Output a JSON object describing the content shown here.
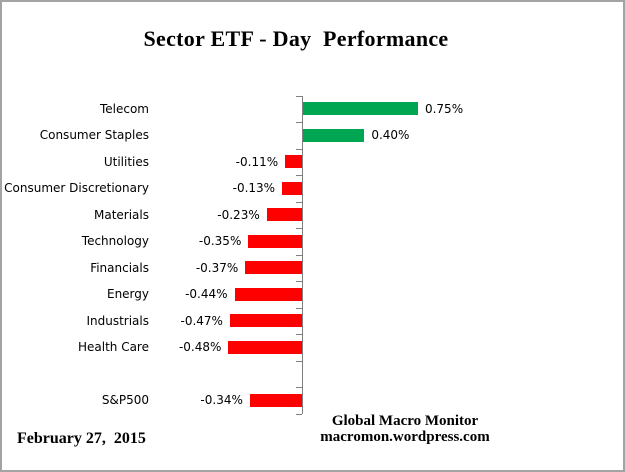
{
  "title": "Sector ETF - Day  Performance",
  "footer": {
    "date": "February 27,  2015",
    "credit_line1": "Global Macro Monitor",
    "credit_line2": "macromon.wordpress.com"
  },
  "colors": {
    "positive_bar": "#00A651",
    "negative_bar": "#FF0000",
    "axis": "#808080",
    "frame_border": "#A3A3A3",
    "text": "#000000"
  },
  "chart_data": {
    "type": "bar",
    "orientation": "horizontal",
    "title": "Sector ETF - Day  Performance",
    "value_unit": "percent",
    "legend": "none",
    "grid": "off",
    "value_axis_labels": "hidden",
    "zero_baseline": true,
    "categories": [
      "Telecom",
      "Consumer Staples",
      "Utilities",
      "Consumer Discretionary",
      "Materials",
      "Technology",
      "Financials",
      "Energy",
      "Industrials",
      "Health Care",
      "",
      "S&P500"
    ],
    "values": [
      0.75,
      0.4,
      -0.11,
      -0.13,
      -0.23,
      -0.35,
      -0.37,
      -0.44,
      -0.47,
      -0.48,
      null,
      -0.34
    ],
    "rows": [
      {
        "category": "Telecom",
        "value": 0.75,
        "label": "0.75%"
      },
      {
        "category": "Consumer Staples",
        "value": 0.4,
        "label": "0.40%"
      },
      {
        "category": "Utilities",
        "value": -0.11,
        "label": "-0.11%"
      },
      {
        "category": "Consumer Discretionary",
        "value": -0.13,
        "label": "-0.13%"
      },
      {
        "category": "Materials",
        "value": -0.23,
        "label": "-0.23%"
      },
      {
        "category": "Technology",
        "value": -0.35,
        "label": "-0.35%"
      },
      {
        "category": "Financials",
        "value": -0.37,
        "label": "-0.37%"
      },
      {
        "category": "Energy",
        "value": -0.44,
        "label": "-0.44%"
      },
      {
        "category": "Industrials",
        "value": -0.47,
        "label": "-0.47%"
      },
      {
        "category": "Health Care",
        "value": -0.48,
        "label": "-0.48%"
      },
      {
        "category": "",
        "value": null,
        "label": ""
      },
      {
        "category": "S&P500",
        "value": -0.34,
        "label": "-0.34%"
      }
    ]
  }
}
